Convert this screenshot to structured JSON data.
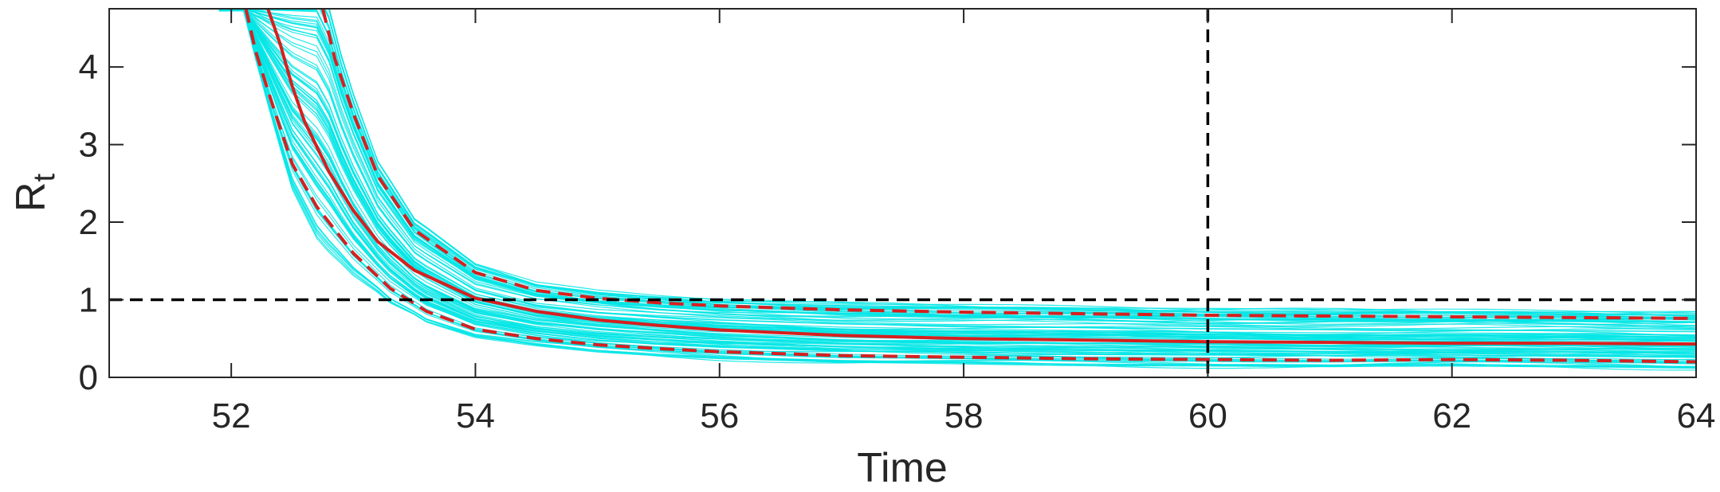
{
  "chart_data": {
    "type": "line",
    "title": "",
    "xlabel": "Time",
    "ylabel": "R",
    "ylabel_subscript": "t",
    "xlim": [
      51,
      64
    ],
    "ylim": [
      0,
      4.75
    ],
    "xticks": [
      52,
      54,
      56,
      58,
      60,
      62,
      64
    ],
    "yticks": [
      0,
      1,
      2,
      3,
      4
    ],
    "grid": false,
    "colors": {
      "samples": "#00e5e5",
      "median": "#d62020",
      "band": "#d62020",
      "reference": "#000000",
      "axis": "#262626"
    },
    "series": [
      {
        "style": "solid",
        "x": [
          52.3,
          52.4,
          52.5,
          52.6,
          52.8,
          53.0,
          53.2,
          53.5,
          54.0,
          54.5,
          55.0,
          55.5,
          56.0,
          57.0,
          58.0,
          59.0,
          60.0,
          61.0,
          62.0,
          63.0,
          64.0
        ],
        "y": [
          4.75,
          4.3,
          3.75,
          3.3,
          2.65,
          2.15,
          1.75,
          1.38,
          1.02,
          0.85,
          0.74,
          0.67,
          0.61,
          0.54,
          0.5,
          0.48,
          0.46,
          0.45,
          0.44,
          0.44,
          0.43
        ]
      },
      {
        "style": "dashed",
        "x": [
          52.75,
          52.85,
          53.0,
          53.2,
          53.5,
          54.0,
          54.5,
          55.0,
          55.5,
          56.0,
          57.0,
          58.0,
          59.0,
          60.0,
          61.0,
          62.0,
          63.0,
          64.0
        ],
        "y": [
          4.75,
          4.1,
          3.4,
          2.6,
          1.9,
          1.35,
          1.12,
          1.02,
          0.96,
          0.92,
          0.87,
          0.84,
          0.82,
          0.8,
          0.79,
          0.78,
          0.77,
          0.76
        ]
      },
      {
        "style": "dashed",
        "x": [
          52.12,
          52.2,
          52.35,
          52.5,
          52.7,
          53.0,
          53.3,
          53.6,
          54.0,
          54.5,
          55.0,
          55.5,
          56.0,
          57.0,
          58.0,
          59.0,
          60.0,
          61.0,
          62.0,
          63.0,
          64.0
        ],
        "y": [
          4.75,
          4.2,
          3.45,
          2.75,
          2.2,
          1.6,
          1.15,
          0.85,
          0.62,
          0.5,
          0.42,
          0.37,
          0.33,
          0.28,
          0.26,
          0.24,
          0.23,
          0.22,
          0.23,
          0.22,
          0.2
        ]
      }
    ],
    "reference_lines": [
      {
        "orientation": "horizontal",
        "value": 1,
        "style": "dashed"
      },
      {
        "orientation": "vertical",
        "value": 60,
        "style": "dashed"
      }
    ]
  }
}
